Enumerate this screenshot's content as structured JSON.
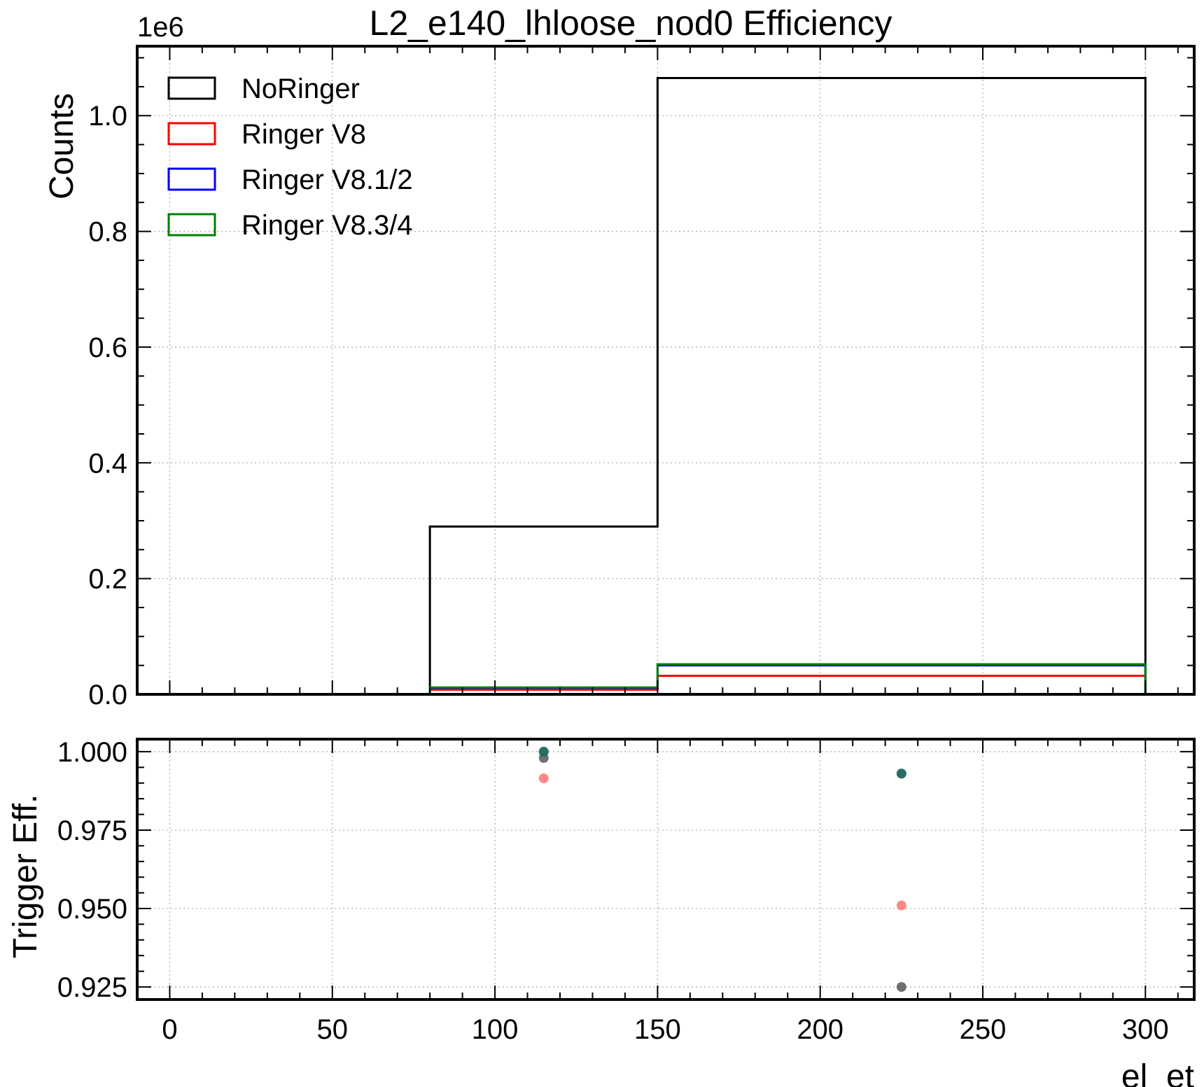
{
  "chart_data": [
    {
      "type": "step-histogram",
      "title": "L2_e140_lhloose_nod0 Efficiency",
      "ylabel": "Counts",
      "y_offset_label": "1e6",
      "y_multiplier": 1000000,
      "xlim": [
        -10,
        315
      ],
      "ylim": [
        0,
        1.12
      ],
      "xticks": [
        0,
        50,
        100,
        150,
        200,
        250,
        300
      ],
      "yticks": [
        0.0,
        0.2,
        0.4,
        0.6,
        0.8,
        1.0
      ],
      "ytick_labels": [
        "0.0",
        "0.2",
        "0.4",
        "0.6",
        "0.8",
        "1.0"
      ],
      "grid": true,
      "legend_position": "top-left",
      "bin_edges": [
        80,
        150,
        300
      ],
      "series": [
        {
          "name": "NoRinger",
          "color": "#000000",
          "values": [
            0.29,
            1.065
          ]
        },
        {
          "name": "Ringer V8",
          "color": "#ff0000",
          "values": [
            0.008,
            0.032
          ]
        },
        {
          "name": "Ringer V8.1/2",
          "color": "#0000ff",
          "values": [
            0.011,
            0.05
          ]
        },
        {
          "name": "Ringer V8.3/4",
          "color": "#008000",
          "values": [
            0.012,
            0.052
          ]
        }
      ]
    },
    {
      "type": "scatter",
      "ylabel": "Trigger Eff.",
      "xlabel": "el_et",
      "xlim": [
        -10,
        315
      ],
      "ylim": [
        0.921,
        1.004
      ],
      "xticks": [
        0,
        50,
        100,
        150,
        200,
        250,
        300
      ],
      "xtick_labels": [
        "0",
        "50",
        "100",
        "150",
        "200",
        "250",
        "300"
      ],
      "yticks": [
        0.925,
        0.95,
        0.975,
        1.0
      ],
      "ytick_labels": [
        "0.925",
        "0.950",
        "0.975",
        "1.000"
      ],
      "grid": true,
      "series": [
        {
          "color": "#404040",
          "points": [
            [
              115,
              0.998
            ],
            [
              225,
              0.925
            ]
          ]
        },
        {
          "color": "#ff6060",
          "points": [
            [
              115,
              0.9915
            ],
            [
              225,
              0.951
            ]
          ]
        },
        {
          "color": "#0a4a6b",
          "points": [
            [
              115,
              1.0
            ],
            [
              225,
              0.993
            ]
          ]
        },
        {
          "color": "#1d6e5a",
          "points": [
            [
              115,
              1.0
            ],
            [
              225,
              0.993
            ]
          ]
        }
      ]
    }
  ]
}
